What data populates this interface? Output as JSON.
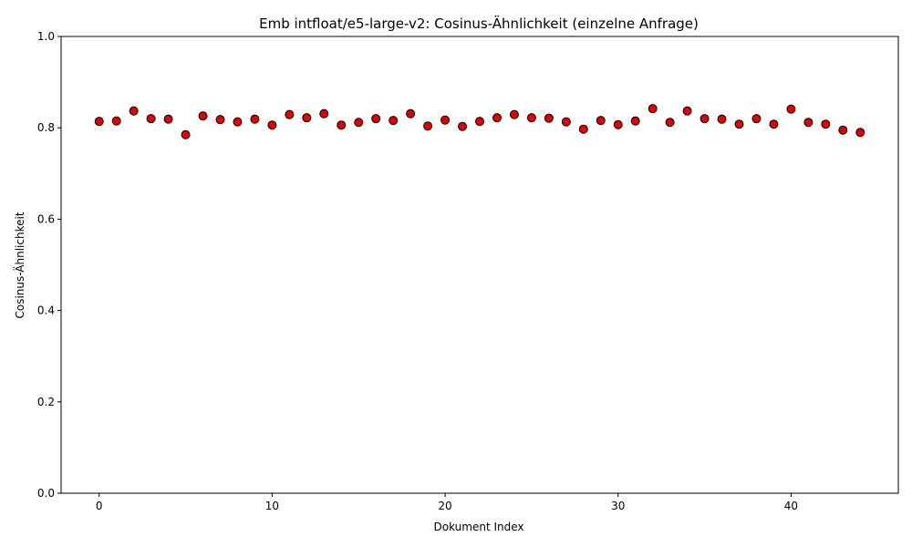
{
  "chart_data": {
    "type": "scatter",
    "title": "Emb intfloat/e5-large-v2: Cosinus-Ähnlichkeit (einzelne Anfrage)",
    "xlabel": "Dokument Index",
    "ylabel": "Cosinus-Ähnlichkeit",
    "xlim": [
      -2.2,
      46.2
    ],
    "ylim": [
      0.0,
      1.0
    ],
    "xticks": [
      0,
      10,
      20,
      30,
      40
    ],
    "xtick_labels": [
      "0",
      "10",
      "20",
      "30",
      "40"
    ],
    "yticks": [
      0.0,
      0.2,
      0.4,
      0.6,
      0.8,
      1.0
    ],
    "ytick_labels": [
      "0.0",
      "0.2",
      "0.4",
      "0.6",
      "0.8",
      "1.0"
    ],
    "grid": false,
    "marker_color": "#e00000",
    "marker_edge_color": "#000000",
    "x": [
      0,
      1,
      2,
      3,
      4,
      5,
      6,
      7,
      8,
      9,
      10,
      11,
      12,
      13,
      14,
      15,
      16,
      17,
      18,
      19,
      20,
      21,
      22,
      23,
      24,
      25,
      26,
      27,
      28,
      29,
      30,
      31,
      32,
      33,
      34,
      35,
      36,
      37,
      38,
      39,
      40,
      41,
      42,
      43,
      44
    ],
    "y": [
      0.814,
      0.815,
      0.837,
      0.82,
      0.819,
      0.785,
      0.826,
      0.818,
      0.813,
      0.819,
      0.806,
      0.829,
      0.822,
      0.831,
      0.806,
      0.812,
      0.82,
      0.816,
      0.831,
      0.804,
      0.817,
      0.803,
      0.814,
      0.822,
      0.829,
      0.822,
      0.821,
      0.813,
      0.797,
      0.816,
      0.807,
      0.815,
      0.842,
      0.812,
      0.837,
      0.82,
      0.819,
      0.808,
      0.82,
      0.808,
      0.841,
      0.812,
      0.808,
      0.795,
      0.79
    ]
  }
}
